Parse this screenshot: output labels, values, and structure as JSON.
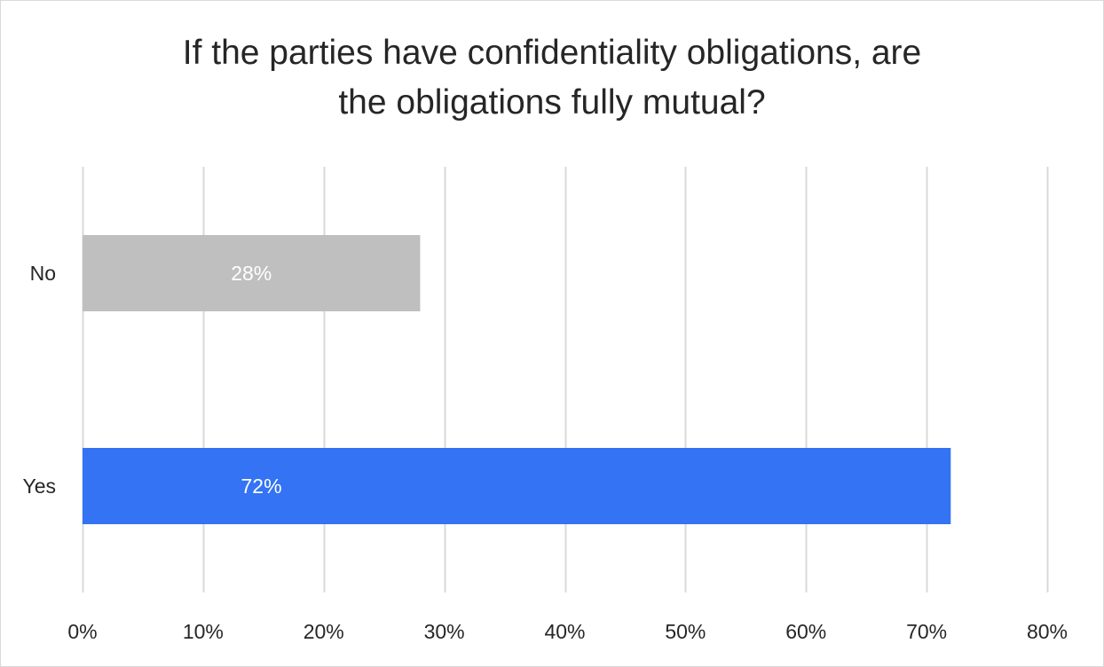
{
  "chart_data": {
    "type": "bar",
    "orientation": "horizontal",
    "title_lines": [
      "If the parties have confidentiality obligations, are",
      "the obligations fully mutual?"
    ],
    "categories": [
      "No",
      "Yes"
    ],
    "values": [
      28,
      72
    ],
    "data_labels": [
      "28%",
      "72%"
    ],
    "bar_colors": [
      "#bfbfbf",
      "#3373f4"
    ],
    "xlim": [
      0,
      80
    ],
    "x_ticks": [
      0,
      10,
      20,
      30,
      40,
      50,
      60,
      70,
      80
    ],
    "x_tick_labels": [
      "0%",
      "10%",
      "20%",
      "30%",
      "40%",
      "50%",
      "60%",
      "70%",
      "80%"
    ],
    "grid": "vertical",
    "gridline_color": "#d9d9d9",
    "legend": "none"
  }
}
